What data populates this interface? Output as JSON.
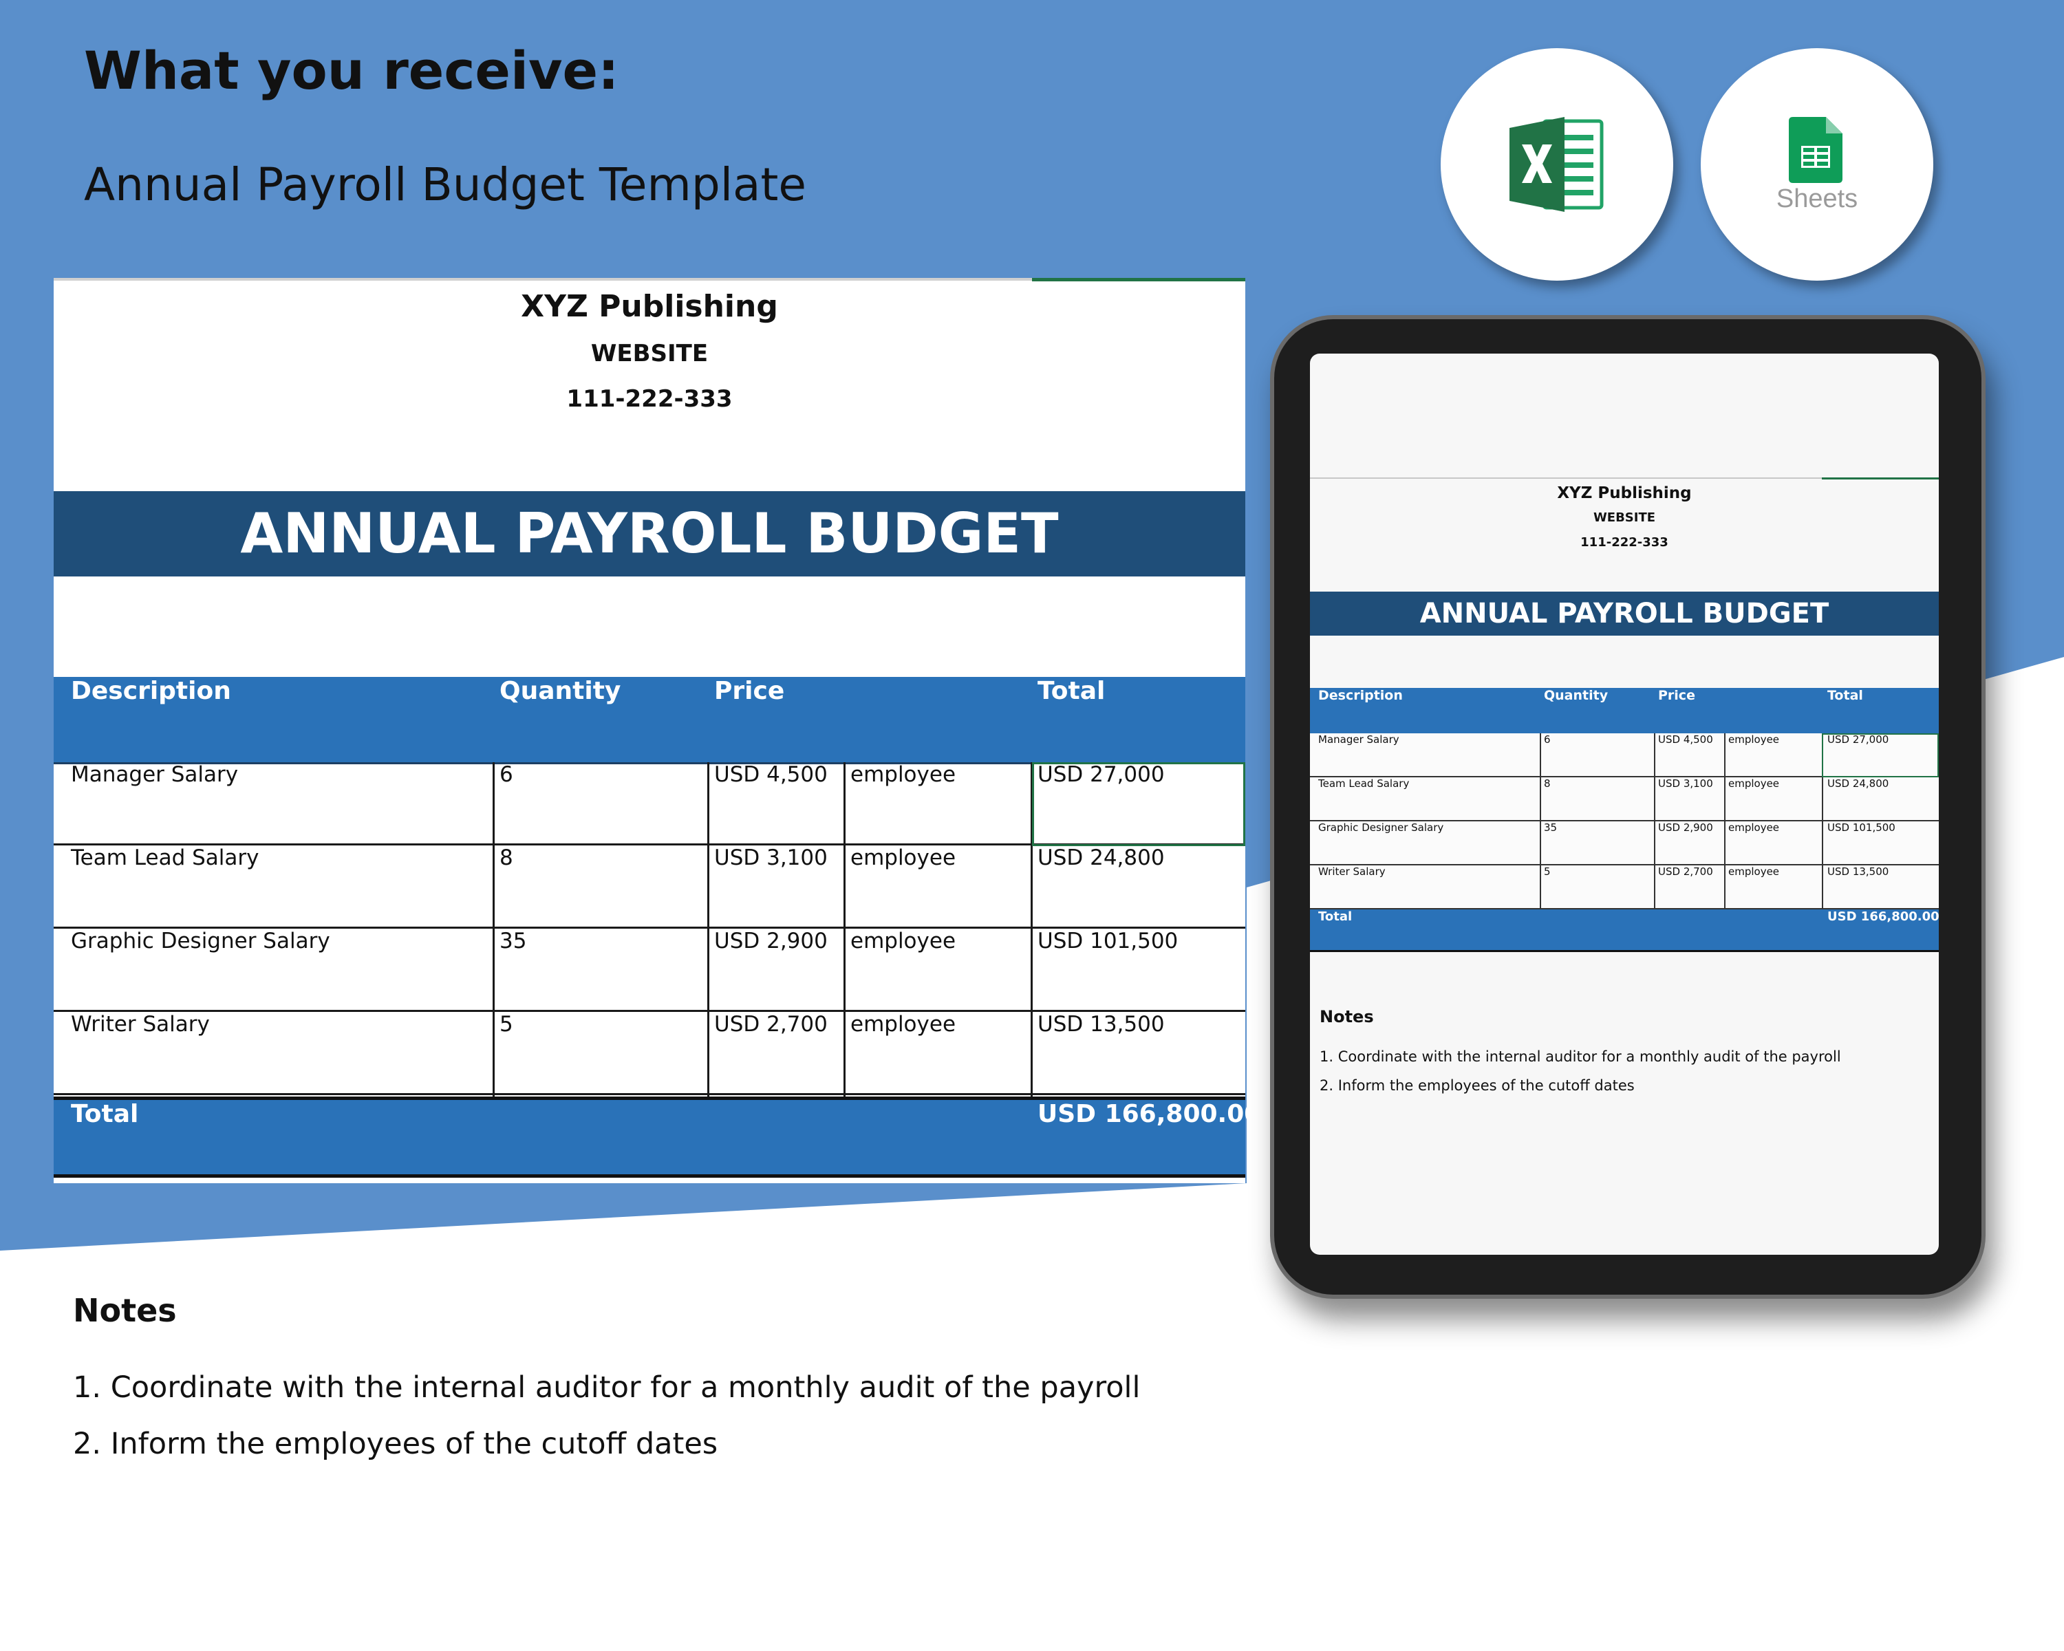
{
  "page": {
    "headline": "What you receive:",
    "subtitle": "Annual Payroll Budget Template",
    "colors": {
      "background_blue": "#5a8fcb",
      "banner_navy": "#1f4e79",
      "table_blue": "#2a72b8",
      "excel_green": "#217346",
      "sheets_green": "#0f9d58"
    }
  },
  "apps": [
    {
      "name": "excel-icon"
    },
    {
      "name": "sheets-icon",
      "label": "Sheets"
    }
  ],
  "document": {
    "company": "XYZ Publishing",
    "website": "WEBSITE",
    "phone": "111-222-333",
    "title": "ANNUAL PAYROLL BUDGET",
    "columns": [
      "Description",
      "Quantity",
      "Price",
      "Total"
    ],
    "rows": [
      {
        "description": "Manager Salary",
        "quantity": "6",
        "price": "USD 4,500",
        "unit": "employee",
        "total": "USD 27,000"
      },
      {
        "description": "Team Lead Salary",
        "quantity": "8",
        "price": "USD 3,100",
        "unit": "employee",
        "total": "USD 24,800"
      },
      {
        "description": "Graphic Designer Salary",
        "quantity": "35",
        "price": "USD 2,900",
        "unit": "employee",
        "total": "USD 101,500"
      },
      {
        "description": "Writer Salary",
        "quantity": "5",
        "price": "USD 2,700",
        "unit": "employee",
        "total": "USD 13,500"
      }
    ],
    "total_label": "Total",
    "total_value": "USD 166,800.00",
    "notes_title": "Notes",
    "notes": [
      "1. Coordinate with the internal auditor for a monthly audit of the payroll",
      "2. Inform the employees of the cutoff dates"
    ]
  }
}
